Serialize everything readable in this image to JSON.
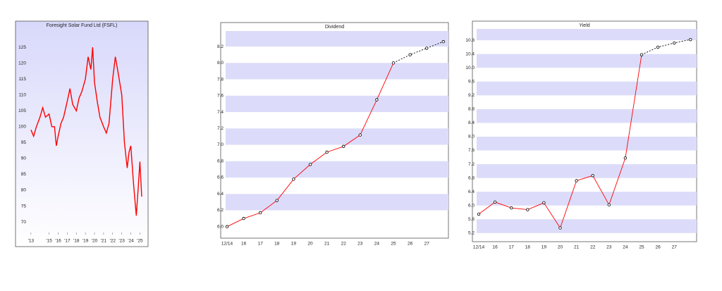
{
  "chart_data": [
    {
      "type": "line",
      "title": "Foresight Solar Fund Ltd (FSFL)",
      "background": "gradient",
      "x": [
        2013.0,
        2013.3,
        2013.6,
        2014.0,
        2014.3,
        2014.6,
        2015.0,
        2015.3,
        2015.6,
        2015.8,
        2016.0,
        2016.3,
        2016.6,
        2017.0,
        2017.3,
        2017.6,
        2018.0,
        2018.3,
        2018.6,
        2019.0,
        2019.3,
        2019.6,
        2019.8,
        2020.0,
        2020.3,
        2020.6,
        2021.0,
        2021.3,
        2021.6,
        2022.0,
        2022.3,
        2022.6,
        2023.0,
        2023.3,
        2023.6,
        2023.8,
        2024.0,
        2024.3,
        2024.6,
        2024.8,
        2025.0,
        2025.2
      ],
      "series": [
        {
          "color": "#ff0000",
          "values": [
            99,
            97,
            100,
            103,
            106,
            103,
            104,
            100,
            100,
            94,
            97,
            101,
            103,
            108,
            112,
            107,
            105,
            109,
            111,
            115,
            122,
            118,
            125,
            114,
            108,
            103,
            100,
            98,
            101,
            115,
            122,
            117,
            110,
            95,
            87,
            92,
            94,
            82,
            72,
            80,
            89,
            78
          ]
        }
      ],
      "xlim": [
        2012.7,
        2025.9
      ],
      "xticks": [
        {
          "value": 2013,
          "label": "'13"
        },
        {
          "value": 2015,
          "label": "'15"
        },
        {
          "value": 2016,
          "label": "'16"
        },
        {
          "value": 2017,
          "label": "'17"
        },
        {
          "value": 2018,
          "label": "'18"
        },
        {
          "value": 2019,
          "label": "'19"
        },
        {
          "value": 2020,
          "label": "'20"
        },
        {
          "value": 2021,
          "label": "'21"
        },
        {
          "value": 2022,
          "label": "'22"
        },
        {
          "value": 2023,
          "label": "'23"
        },
        {
          "value": 2024,
          "label": "'24"
        },
        {
          "value": 2025,
          "label": "'25"
        }
      ],
      "ylim": [
        66.7,
        131
      ],
      "yticks": [
        70,
        75,
        80,
        85,
        90,
        95,
        100,
        105,
        110,
        115,
        120,
        125
      ]
    },
    {
      "type": "line",
      "title": "Dividend",
      "bands": true,
      "markers": true,
      "categories": [
        "12/14",
        "16",
        "17",
        "18",
        "19",
        "20",
        "21",
        "22",
        "23",
        "24",
        "25",
        "26",
        "27",
        null
      ],
      "series": [
        {
          "color": "#ff0000",
          "values": [
            6.0,
            6.1,
            6.17,
            6.32,
            6.58,
            6.76,
            6.91,
            6.98,
            7.12,
            7.55,
            8.0,
            null,
            null,
            null
          ]
        },
        {
          "color": "#000000",
          "dashed": true,
          "values": [
            null,
            null,
            null,
            null,
            null,
            null,
            null,
            null,
            null,
            null,
            8.0,
            8.1,
            8.18,
            8.26
          ]
        }
      ],
      "ylim": [
        5.86,
        8.39
      ],
      "yticks": [
        {
          "value": 6,
          "label": "6.0"
        },
        6.2,
        6.4,
        6.6,
        6.8,
        {
          "value": 7,
          "label": "7.0"
        },
        7.2,
        7.4,
        7.6,
        7.8,
        {
          "value": 8,
          "label": "8.0"
        },
        8.2
      ]
    },
    {
      "type": "line",
      "title": "Yield",
      "bands": true,
      "markers": true,
      "categories": [
        "12/14",
        "16",
        "17",
        "18",
        "19",
        "20",
        "21",
        "22",
        "23",
        "24",
        "25",
        "26",
        "27",
        null
      ],
      "series": [
        {
          "color": "#ff0000",
          "values": [
            5.75,
            6.1,
            5.93,
            5.88,
            6.08,
            5.35,
            6.72,
            6.87,
            6.02,
            7.38,
            10.38,
            null,
            null,
            null
          ]
        },
        {
          "color": "#000000",
          "dashed": true,
          "values": [
            null,
            null,
            null,
            null,
            null,
            null,
            null,
            null,
            null,
            null,
            10.38,
            10.6,
            10.72,
            10.82
          ]
        }
      ],
      "ylim": [
        4.95,
        11.13
      ],
      "yticks": [
        5.2,
        5.6,
        {
          "value": 6,
          "label": "6.0"
        },
        6.4,
        6.8,
        7.2,
        7.6,
        {
          "value": 8,
          "label": "8.0"
        },
        8.4,
        8.8,
        9.2,
        9.6,
        {
          "value": 10,
          "label": "10.0"
        },
        10.4,
        10.8
      ]
    }
  ]
}
